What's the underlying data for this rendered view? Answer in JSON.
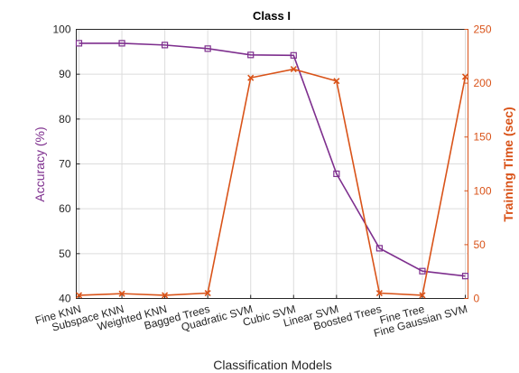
{
  "chart_data": {
    "type": "line",
    "title": "Class I",
    "xlabel": "Classification Models",
    "ylabel_left": "Accuracy (%)",
    "ylabel_right": "Training Time (sec)",
    "categories": [
      "Fine KNN",
      "Subspace KNN",
      "Weighted KNN",
      "Bagged Trees",
      "Quadratic SVM",
      "Cubic SVM",
      "Linear SVM",
      "Boosted Trees",
      "Fine Tree",
      "Fine Gaussian SVM"
    ],
    "ylim_left": [
      40,
      100
    ],
    "yticks_left": [
      40,
      50,
      60,
      70,
      80,
      90,
      100
    ],
    "ylim_right": [
      0,
      250
    ],
    "yticks_right": [
      0,
      50,
      100,
      150,
      200,
      250
    ],
    "grid": true,
    "series": [
      {
        "axis": "left",
        "marker": "square",
        "color": "#7E2F8E",
        "values": [
          96.9,
          96.9,
          96.5,
          95.7,
          94.3,
          94.2,
          67.8,
          51.2,
          46.1,
          45.0
        ]
      },
      {
        "axis": "right",
        "marker": "x",
        "color": "#D95319",
        "values": [
          3,
          4.5,
          3,
          5,
          205,
          213,
          202,
          5,
          3,
          206
        ]
      }
    ]
  }
}
